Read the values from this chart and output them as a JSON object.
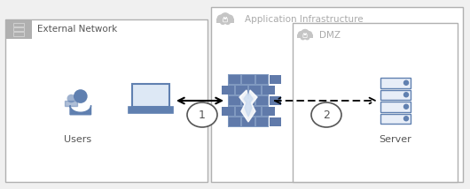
{
  "bg_color": "#f0f0f0",
  "white": "#ffffff",
  "gray_border": "#b0b0b0",
  "gray_fill": "#b0b0b0",
  "gray_text": "#aaaaaa",
  "dark_text": "#555555",
  "blue_icon": "#6080b0",
  "firewall_blue": "#8099c0",
  "firewall_dark": "#607aaa",
  "firewall_brick": "#8099c0",
  "labels": {
    "external_network": "External Network",
    "application_infrastructure": "Application Infrastructure",
    "dmz": "DMZ",
    "users": "Users",
    "server": "Server",
    "n1": "1",
    "n2": "2"
  }
}
